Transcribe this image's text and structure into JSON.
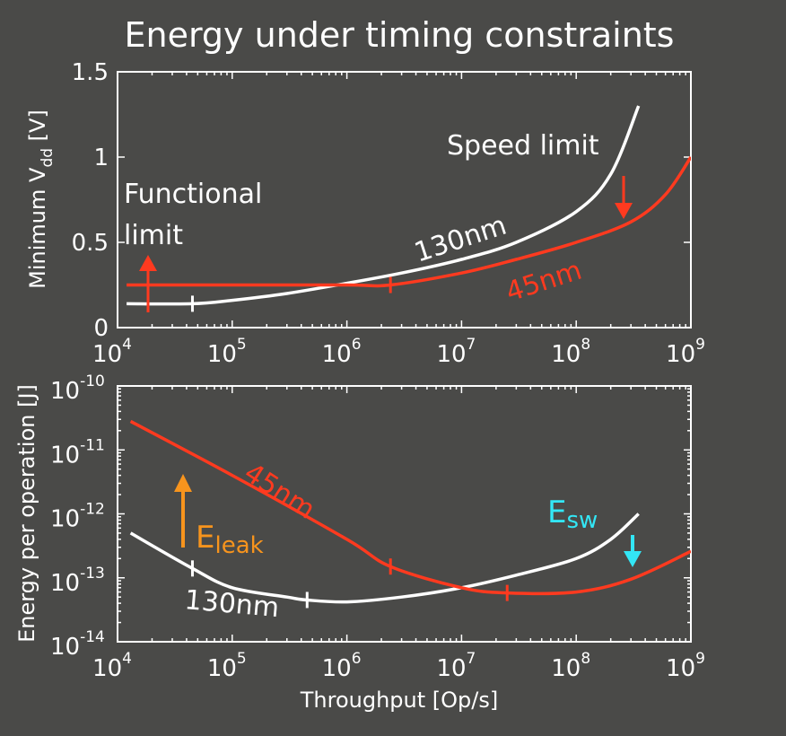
{
  "title": "Energy under timing constraints",
  "colors": {
    "background": "#4a4a48",
    "white_curve": "#ffffff",
    "red_curve": "#ff3a1f",
    "orange_arrow": "#f7941d",
    "cyan_arrow": "#33e6f5"
  },
  "chart_data": [
    {
      "type": "line",
      "xscale": "log",
      "xlim": [
        10000,
        1000000000
      ],
      "ylim": [
        0,
        1.5
      ],
      "xticks": [
        {
          "base": "10",
          "exp": "4"
        },
        {
          "base": "10",
          "exp": "5"
        },
        {
          "base": "10",
          "exp": "6"
        },
        {
          "base": "10",
          "exp": "7"
        },
        {
          "base": "10",
          "exp": "8"
        },
        {
          "base": "10",
          "exp": "9"
        }
      ],
      "yticks": [
        "0",
        "0.5",
        "1",
        "1.5"
      ],
      "ylabel": {
        "main": "Minimum V",
        "sub": "dd",
        "unit": " [V]"
      },
      "series": [
        {
          "name": "130nm",
          "color": "#ffffff",
          "x": [
            12000,
            45000,
            100000,
            300000,
            1000000,
            3000000,
            10000000,
            30000000,
            100000000,
            200000000,
            350000000
          ],
          "y": [
            0.14,
            0.14,
            0.16,
            0.2,
            0.26,
            0.32,
            0.4,
            0.5,
            0.68,
            0.9,
            1.3
          ],
          "markers": [
            45000
          ]
        },
        {
          "name": "45nm",
          "color": "#ff3a1f",
          "x": [
            12000,
            100000,
            1000000,
            2400000,
            10000000,
            30000000,
            100000000,
            300000000,
            600000000,
            1000000000
          ],
          "y": [
            0.25,
            0.25,
            0.25,
            0.25,
            0.32,
            0.4,
            0.5,
            0.62,
            0.78,
            1.0
          ],
          "markers": [
            2400000
          ]
        }
      ],
      "annotations": {
        "functional_limit_line1": "Functional",
        "functional_limit_line2": "limit",
        "speed_limit": "Speed limit",
        "label_130": "130nm",
        "label_45": "45nm"
      }
    },
    {
      "type": "line",
      "xscale": "log",
      "yscale": "log",
      "xlim": [
        10000,
        1000000000
      ],
      "ylim": [
        1e-14,
        1e-10
      ],
      "xticks": [
        {
          "base": "10",
          "exp": "4"
        },
        {
          "base": "10",
          "exp": "5"
        },
        {
          "base": "10",
          "exp": "6"
        },
        {
          "base": "10",
          "exp": "7"
        },
        {
          "base": "10",
          "exp": "8"
        },
        {
          "base": "10",
          "exp": "9"
        }
      ],
      "yticks": [
        {
          "base": "10",
          "exp": "-10"
        },
        {
          "base": "10",
          "exp": "-11"
        },
        {
          "base": "10",
          "exp": "-12"
        },
        {
          "base": "10",
          "exp": "-13"
        },
        {
          "base": "10",
          "exp": "-14"
        }
      ],
      "ylabel": "Energy per operation [J]",
      "xlabel": "Throughput [Op/s]",
      "series": [
        {
          "name": "130nm",
          "color": "#ffffff",
          "x": [
            13000,
            45000,
            100000,
            300000,
            450000,
            1000000,
            3000000,
            10000000,
            30000000,
            100000000,
            200000000,
            350000000
          ],
          "y": [
            5e-13,
            1.4e-13,
            7e-14,
            5e-14,
            4.5e-14,
            4.2e-14,
            5e-14,
            7e-14,
            1.1e-13,
            2e-13,
            4e-13,
            1e-12
          ],
          "markers": [
            45000,
            450000
          ]
        },
        {
          "name": "45nm",
          "color": "#ff3a1f",
          "x": [
            13000,
            100000,
            1000000,
            2400000,
            10000000,
            25000000,
            100000000,
            300000000,
            1000000000
          ],
          "y": [
            2.8e-11,
            4e-12,
            4e-13,
            1.5e-13,
            7e-14,
            5.8e-14,
            6e-14,
            9.5e-14,
            2.6e-13
          ],
          "markers": [
            2400000,
            25000000
          ]
        }
      ],
      "annotations": {
        "label_45": "45nm",
        "label_130": "130nm",
        "eleak_main": "E",
        "eleak_sub": "leak",
        "esw_main": "E",
        "esw_sub": "sw"
      }
    }
  ]
}
